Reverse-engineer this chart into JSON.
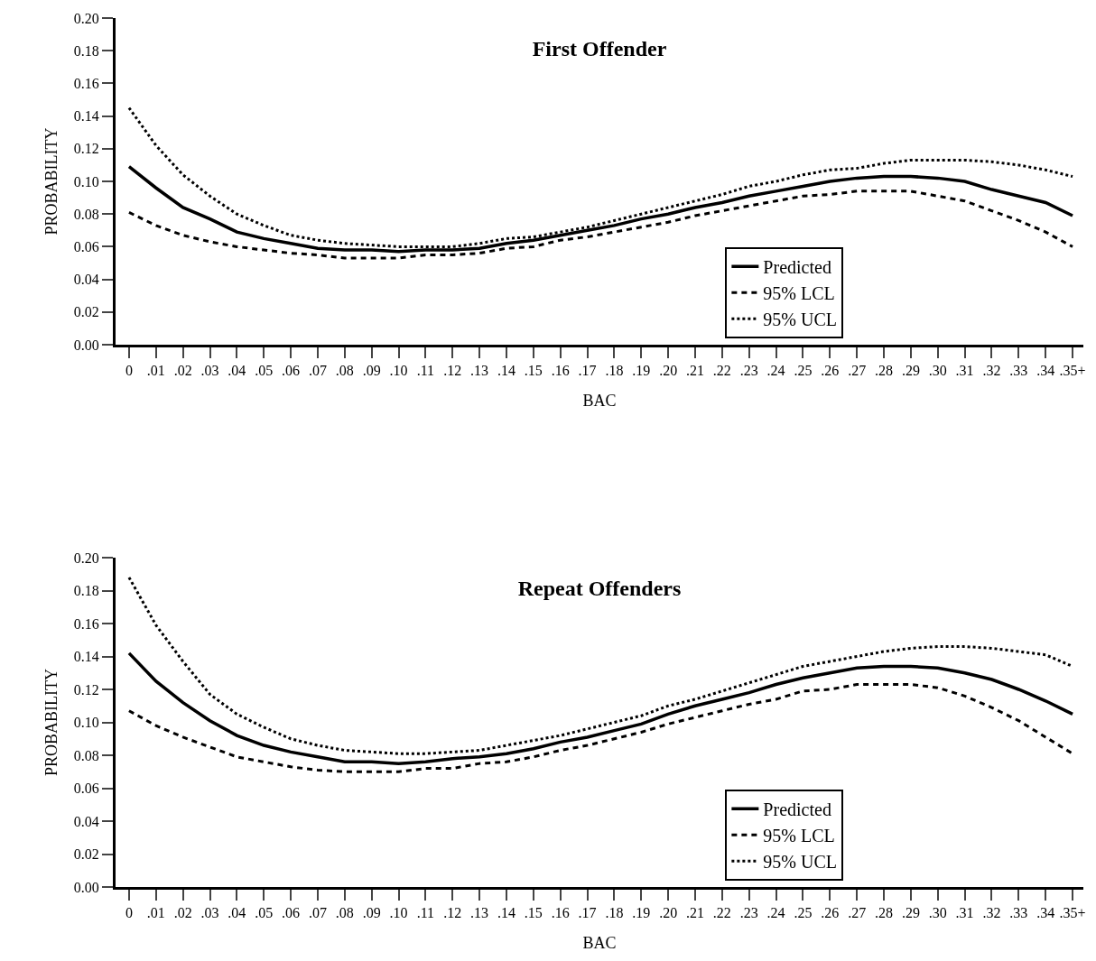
{
  "chart_data": [
    {
      "type": "line",
      "title": "First Offender",
      "xlabel": "BAC",
      "ylabel": "PROBABILITY",
      "categories": [
        "0",
        ".01",
        ".02",
        ".03",
        ".04",
        ".05",
        ".06",
        ".07",
        ".08",
        ".09",
        ".10",
        ".11",
        ".12",
        ".13",
        ".14",
        ".15",
        ".16",
        ".17",
        ".18",
        ".19",
        ".20",
        ".21",
        ".22",
        ".23",
        ".24",
        ".25",
        ".26",
        ".27",
        ".28",
        ".29",
        ".30",
        ".31",
        ".32",
        ".33",
        ".34",
        ".35+"
      ],
      "series": [
        {
          "name": "Predicted",
          "color": "#000000",
          "line_style": "solid",
          "values": [
            0.109,
            0.096,
            0.084,
            0.077,
            0.069,
            0.065,
            0.062,
            0.059,
            0.058,
            0.058,
            0.057,
            0.058,
            0.058,
            0.059,
            0.062,
            0.064,
            0.067,
            0.07,
            0.073,
            0.077,
            0.08,
            0.084,
            0.087,
            0.091,
            0.094,
            0.097,
            0.1,
            0.102,
            0.103,
            0.103,
            0.102,
            0.1,
            0.095,
            0.091,
            0.087,
            0.079
          ]
        },
        {
          "name": "95% LCL",
          "color": "#000000",
          "line_style": "dashed",
          "values": [
            0.081,
            0.073,
            0.067,
            0.063,
            0.06,
            0.058,
            0.056,
            0.055,
            0.053,
            0.053,
            0.053,
            0.055,
            0.055,
            0.056,
            0.059,
            0.06,
            0.064,
            0.066,
            0.069,
            0.072,
            0.075,
            0.079,
            0.082,
            0.085,
            0.088,
            0.091,
            0.092,
            0.094,
            0.094,
            0.094,
            0.091,
            0.088,
            0.082,
            0.076,
            0.069,
            0.06
          ]
        },
        {
          "name": "95% UCL",
          "color": "#000000",
          "line_style": "dotted",
          "values": [
            0.145,
            0.122,
            0.104,
            0.091,
            0.08,
            0.073,
            0.067,
            0.064,
            0.062,
            0.061,
            0.06,
            0.06,
            0.06,
            0.062,
            0.065,
            0.066,
            0.069,
            0.072,
            0.076,
            0.08,
            0.084,
            0.088,
            0.092,
            0.097,
            0.1,
            0.104,
            0.107,
            0.108,
            0.111,
            0.113,
            0.113,
            0.113,
            0.112,
            0.11,
            0.107,
            0.103
          ]
        }
      ],
      "ylim": [
        0,
        0.2
      ],
      "yticks": [
        {
          "value": 0,
          "label": "0.00"
        },
        {
          "value": 0.02,
          "label": "0.02"
        },
        {
          "value": 0.04,
          "label": "0.04"
        },
        {
          "value": 0.06,
          "label": "0.06"
        },
        {
          "value": 0.08,
          "label": "0.08"
        },
        {
          "value": 0.1,
          "label": "0.10"
        },
        {
          "value": 0.12,
          "label": "0.12"
        },
        {
          "value": 0.14,
          "label": "0.14"
        },
        {
          "value": 0.16,
          "label": "0.16"
        },
        {
          "value": 0.18,
          "label": "0.18"
        },
        {
          "value": 0.2,
          "label": "0.20"
        }
      ],
      "grid": false,
      "legend": "bottom right",
      "marker": "none"
    },
    {
      "type": "line",
      "title": "Repeat Offenders",
      "xlabel": "BAC",
      "ylabel": "PROBABILITY",
      "categories": [
        "0",
        ".01",
        ".02",
        ".03",
        ".04",
        ".05",
        ".06",
        ".07",
        ".08",
        ".09",
        ".10",
        ".11",
        ".12",
        ".13",
        ".14",
        ".15",
        ".16",
        ".17",
        ".18",
        ".19",
        ".20",
        ".21",
        ".22",
        ".23",
        ".24",
        ".25",
        ".26",
        ".27",
        ".28",
        ".29",
        ".30",
        ".31",
        ".32",
        ".33",
        ".34",
        ".35+"
      ],
      "series": [
        {
          "name": "Predicted",
          "color": "#000000",
          "line_style": "solid",
          "values": [
            0.142,
            0.125,
            0.112,
            0.101,
            0.092,
            0.086,
            0.082,
            0.079,
            0.076,
            0.076,
            0.075,
            0.076,
            0.078,
            0.079,
            0.081,
            0.084,
            0.088,
            0.091,
            0.095,
            0.099,
            0.105,
            0.11,
            0.114,
            0.118,
            0.123,
            0.127,
            0.13,
            0.133,
            0.134,
            0.134,
            0.133,
            0.13,
            0.126,
            0.12,
            0.113,
            0.105
          ]
        },
        {
          "name": "95% LCL",
          "color": "#000000",
          "line_style": "dashed",
          "values": [
            0.107,
            0.098,
            0.091,
            0.085,
            0.079,
            0.076,
            0.073,
            0.071,
            0.07,
            0.07,
            0.07,
            0.072,
            0.072,
            0.075,
            0.076,
            0.079,
            0.083,
            0.086,
            0.09,
            0.094,
            0.099,
            0.103,
            0.107,
            0.111,
            0.114,
            0.119,
            0.12,
            0.123,
            0.123,
            0.123,
            0.121,
            0.116,
            0.109,
            0.101,
            0.091,
            0.081
          ]
        },
        {
          "name": "95% UCL",
          "color": "#000000",
          "line_style": "dotted",
          "values": [
            0.188,
            0.159,
            0.137,
            0.117,
            0.105,
            0.097,
            0.09,
            0.086,
            0.083,
            0.082,
            0.081,
            0.081,
            0.082,
            0.083,
            0.086,
            0.089,
            0.092,
            0.096,
            0.1,
            0.104,
            0.11,
            0.114,
            0.119,
            0.124,
            0.129,
            0.134,
            0.137,
            0.14,
            0.143,
            0.145,
            0.146,
            0.146,
            0.145,
            0.143,
            0.141,
            0.134
          ]
        }
      ],
      "ylim": [
        0,
        0.2
      ],
      "yticks": [
        {
          "value": 0,
          "label": "0.00"
        },
        {
          "value": 0.02,
          "label": "0.02"
        },
        {
          "value": 0.04,
          "label": "0.04"
        },
        {
          "value": 0.06,
          "label": "0.06"
        },
        {
          "value": 0.08,
          "label": "0.08"
        },
        {
          "value": 0.1,
          "label": "0.10"
        },
        {
          "value": 0.12,
          "label": "0.12"
        },
        {
          "value": 0.14,
          "label": "0.14"
        },
        {
          "value": 0.16,
          "label": "0.16"
        },
        {
          "value": 0.18,
          "label": "0.18"
        },
        {
          "value": 0.2,
          "label": "0.20"
        }
      ],
      "grid": false,
      "legend": "bottom right",
      "marker": "none"
    }
  ]
}
